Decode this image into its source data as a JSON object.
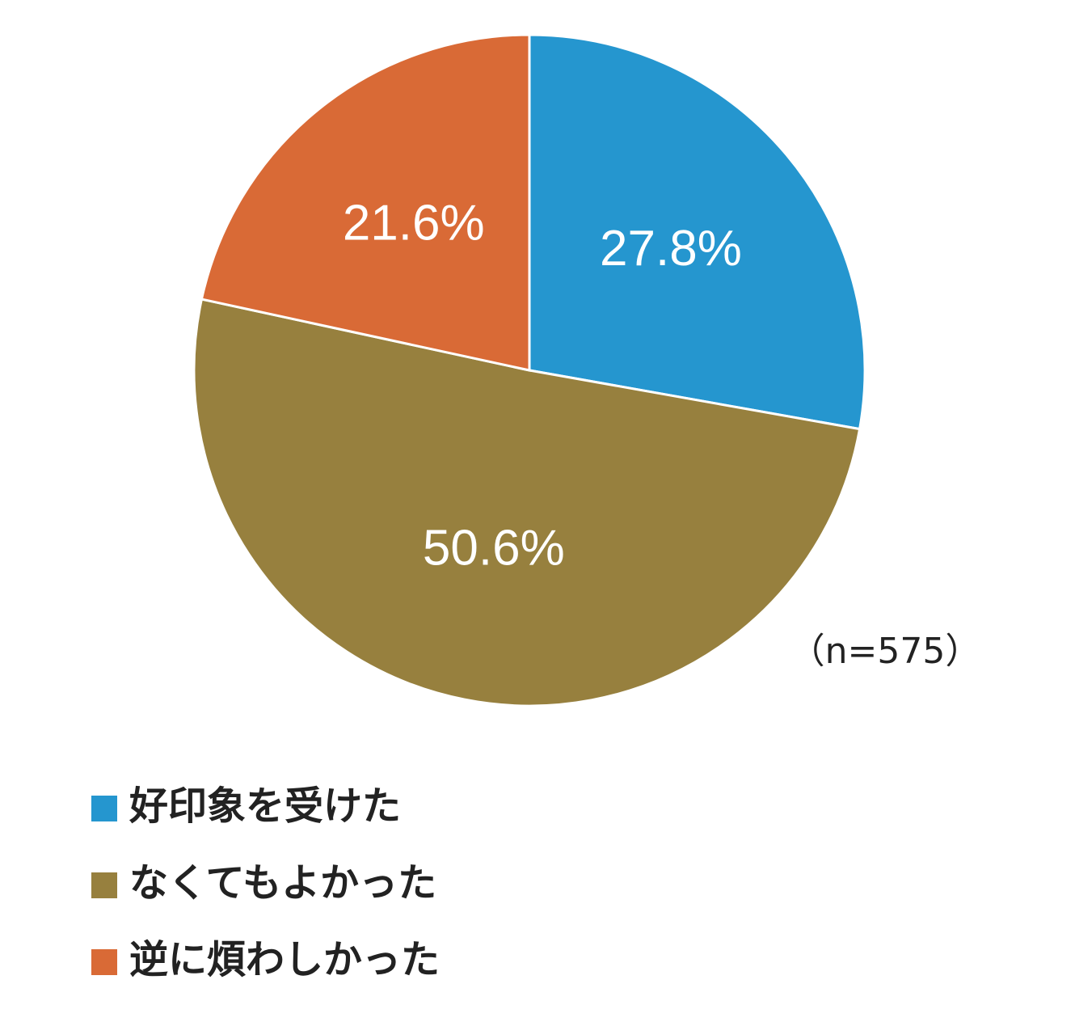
{
  "chart_data": {
    "type": "pie",
    "categories": [
      "好印象を受けた",
      "なくてもよかった",
      "逆に煩わしかった"
    ],
    "values": [
      27.8,
      50.6,
      21.6
    ],
    "value_labels": [
      "27.8%",
      "50.6%",
      "21.6%"
    ],
    "colors": [
      "#2596cf",
      "#97803e",
      "#d96a36"
    ],
    "annotation": "（n=575）",
    "legend": "bottom-left"
  }
}
